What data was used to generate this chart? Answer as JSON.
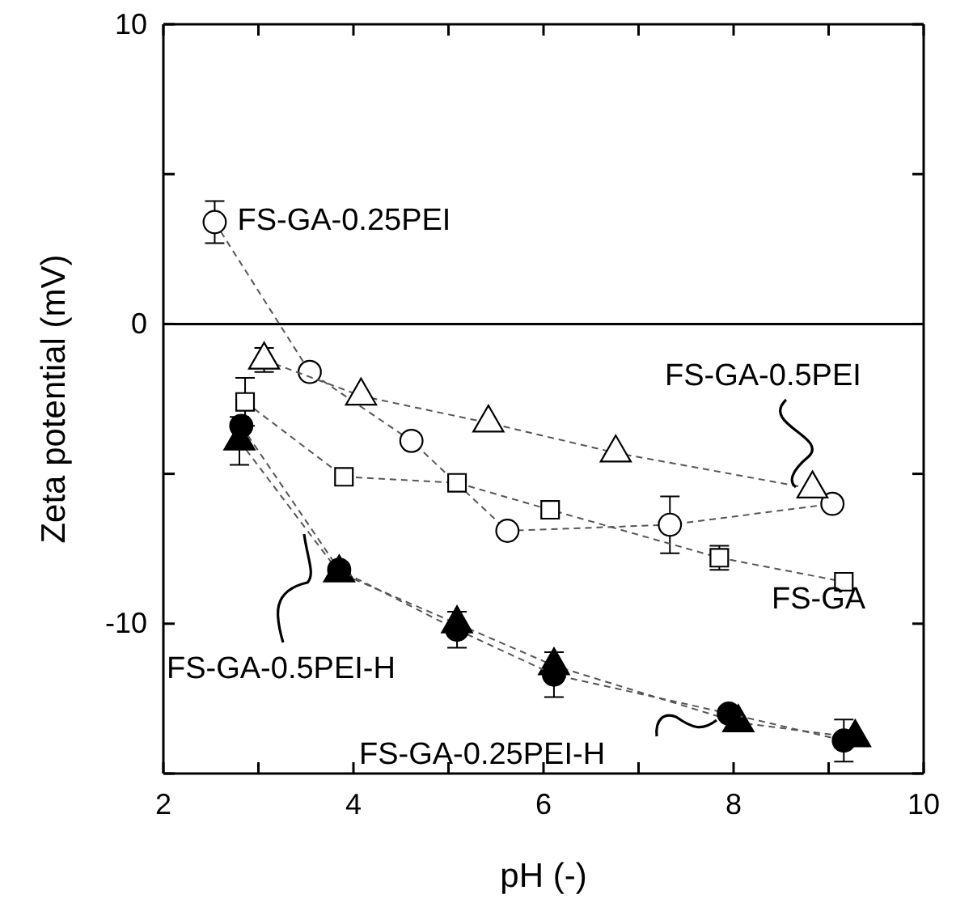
{
  "chart_data": {
    "type": "line",
    "xlabel": "pH (-)",
    "ylabel": "Zeta potential (mV)",
    "xlim": [
      2,
      10
    ],
    "ylim": [
      -15,
      10
    ],
    "xticks": [
      2,
      {
        "value": 3,
        "label": null
      },
      4,
      {
        "value": 5,
        "label": null
      },
      6,
      {
        "value": 7,
        "label": null
      },
      8,
      {
        "value": 9,
        "label": null
      },
      10
    ],
    "yticks": [
      {
        "value": -15,
        "label": null
      },
      -10,
      {
        "value": -5,
        "label": null
      },
      0,
      {
        "value": 5,
        "label": null
      },
      10
    ],
    "grid": false,
    "legend": false,
    "line_style": "dashed",
    "ref_lines": [
      {
        "axis": "y",
        "value": 0,
        "color": "#000000"
      }
    ],
    "series": [
      {
        "name": "FS-GA-0.25PEI",
        "color": "#ffffff",
        "marker": "circle",
        "x": [
          2.54,
          3.54,
          4.61,
          5.62,
          7.33,
          9.04
        ],
        "values": [
          3.4,
          -1.6,
          -3.9,
          -6.9,
          -6.7,
          -6.0
        ],
        "errors": [
          0.7,
          null,
          null,
          null,
          0.95,
          null
        ]
      },
      {
        "name": "FS-GA-0.5PEI",
        "color": "#ffffff",
        "marker": "triangle",
        "x": [
          3.06,
          4.08,
          5.42,
          6.76,
          8.83
        ],
        "values": [
          -1.2,
          -2.4,
          -3.3,
          -4.3,
          -5.5
        ],
        "errors": [
          0.4,
          null,
          null,
          null,
          null
        ]
      },
      {
        "name": "FS-GA",
        "color": "#ffffff",
        "marker": "square",
        "x": [
          2.86,
          3.9,
          5.09,
          6.07,
          7.85,
          9.16
        ],
        "values": [
          -2.6,
          -5.1,
          -5.3,
          -6.2,
          -7.8,
          -8.6
        ],
        "errors": [
          0.8,
          null,
          null,
          null,
          0.4,
          null
        ]
      },
      {
        "name": "FS-GA-0.5PEI-H",
        "color": "#000000",
        "marker": "triangle",
        "x": [
          2.8,
          3.85,
          5.09,
          6.11,
          8.05,
          9.28
        ],
        "values": [
          -3.9,
          -8.3,
          -10.0,
          -11.4,
          -13.3,
          -13.8
        ],
        "errors": [
          0.8,
          null,
          null,
          null,
          null,
          null
        ]
      },
      {
        "name": "FS-GA-0.25PEI-H",
        "color": "#000000",
        "marker": "circle",
        "x": [
          2.82,
          3.85,
          5.09,
          6.11,
          7.95,
          9.16
        ],
        "values": [
          -3.4,
          -8.2,
          -10.2,
          -11.7,
          -13.0,
          -13.9
        ],
        "errors": [
          null,
          null,
          0.6,
          0.75,
          null,
          0.7
        ]
      }
    ]
  }
}
